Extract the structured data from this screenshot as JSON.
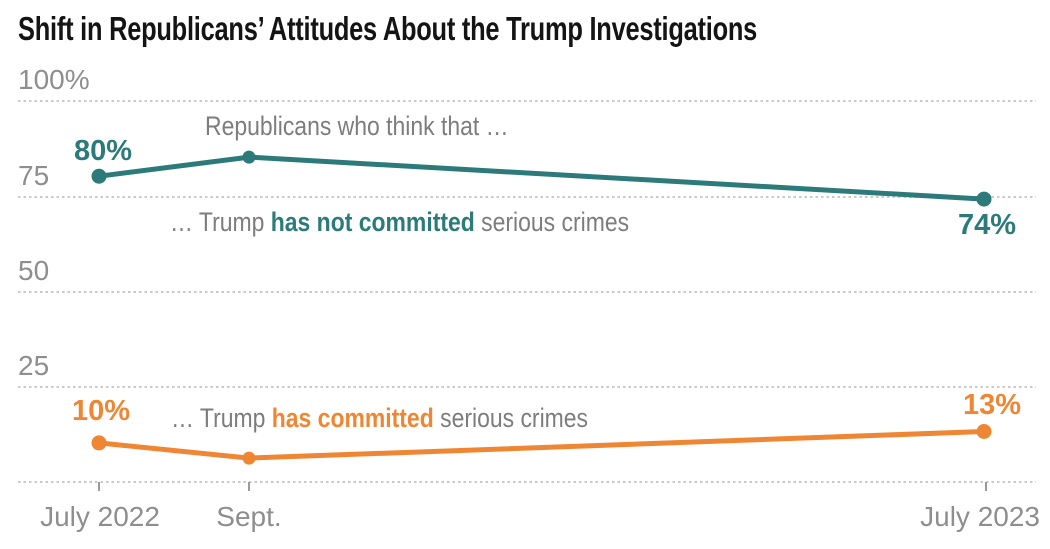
{
  "title": "Shift in Republicans’ Attitudes About the Trump Investigations",
  "colors": {
    "teal": "#2c7a7a",
    "orange": "#ef8633",
    "annotation_gray": "#7d7d7d",
    "axis_gray": "#8e8e8e",
    "gridline_gray": "#c9c9c9",
    "title_color": "#141414"
  },
  "axes": {
    "y_labels": [
      "100%",
      "75",
      "50",
      "25"
    ],
    "x_labels": [
      "July 2022",
      "Sept.",
      "July 2023"
    ]
  },
  "annotations": {
    "intro": "Republicans who think that …",
    "not_committed": {
      "pre": "… Trump ",
      "bold": "has not committed",
      "post": " serious crimes"
    },
    "committed": {
      "pre": "… Trump ",
      "bold": "has committed",
      "post": " serious crimes"
    }
  },
  "point_labels": {
    "not_committed_start": "80%",
    "not_committed_end": "74%",
    "committed_start": "10%",
    "committed_end": "13%"
  },
  "chart_data": {
    "type": "line",
    "title": "Shift in Republicans’ Attitudes About the Trump Investigations",
    "x": [
      "July 2022",
      "Sept. 2022",
      "July 2023"
    ],
    "series": [
      {
        "name": "Trump has not committed serious crimes",
        "color": "#2c7a7a",
        "values": [
          80,
          85,
          74
        ]
      },
      {
        "name": "Trump has committed serious crimes",
        "color": "#ef8633",
        "values": [
          10,
          6,
          13
        ]
      }
    ],
    "ylim": [
      0,
      100
    ],
    "yticks": [
      0,
      25,
      50,
      75,
      100
    ],
    "grid": "horizontal-dotted",
    "legend_position": "inline-annotations",
    "x_time_proportional": true
  }
}
